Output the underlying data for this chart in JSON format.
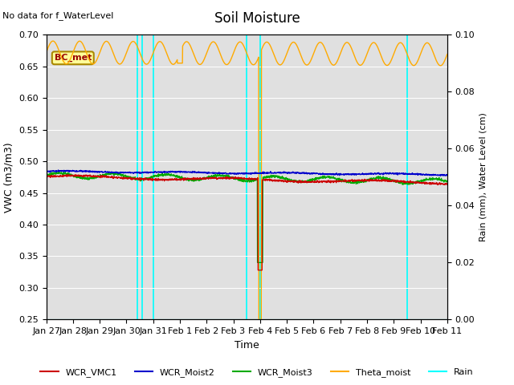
{
  "title": "Soil Moisture",
  "top_left_text": "No data for f_WaterLevel",
  "annotation_text": "BC_met",
  "xlabel": "Time",
  "ylabel_left": "VWC (m3/m3)",
  "ylabel_right": "Rain (mm), Water Level (cm)",
  "ylim_left": [
    0.25,
    0.7
  ],
  "ylim_right": [
    0.0,
    0.1
  ],
  "yticks_left": [
    0.25,
    0.3,
    0.35,
    0.4,
    0.45,
    0.5,
    0.55,
    0.6,
    0.65,
    0.7
  ],
  "yticks_right": [
    0.0,
    0.02,
    0.04,
    0.06,
    0.08,
    0.1
  ],
  "xtick_labels": [
    "Jan 27",
    "Jan 28",
    "Jan 29",
    "Jan 30",
    "Jan 31",
    "Feb 1",
    "Feb 2",
    "Feb 3",
    "Feb 4",
    "Feb 5",
    "Feb 6",
    "Feb 7",
    "Feb 8",
    "Feb 9",
    "Feb 10",
    "Feb 11"
  ],
  "colors": {
    "WCR_VMC1": "#cc0000",
    "WCR_Moist2": "#0000cc",
    "WCR_Moist3": "#00aa00",
    "Theta_moist": "#ffaa00",
    "Rain": "#00ffff",
    "background": "#e0e0e0",
    "annotation_bg": "#ffff99",
    "annotation_border": "#aa8800",
    "annotation_text": "#990000"
  },
  "num_days": 15.0,
  "cyan_vlines": [
    3.42,
    3.58,
    4.0,
    7.5,
    8.0,
    13.5
  ],
  "theta_spike_positions": [
    4.0
  ],
  "vmc_spike_day": 7.6,
  "theta_base": 0.672,
  "theta_amplitude": 0.018,
  "theta_period": 1.0,
  "vmc1_base": 0.476,
  "vmc2_base": 0.484,
  "vmc3_base": 0.478
}
